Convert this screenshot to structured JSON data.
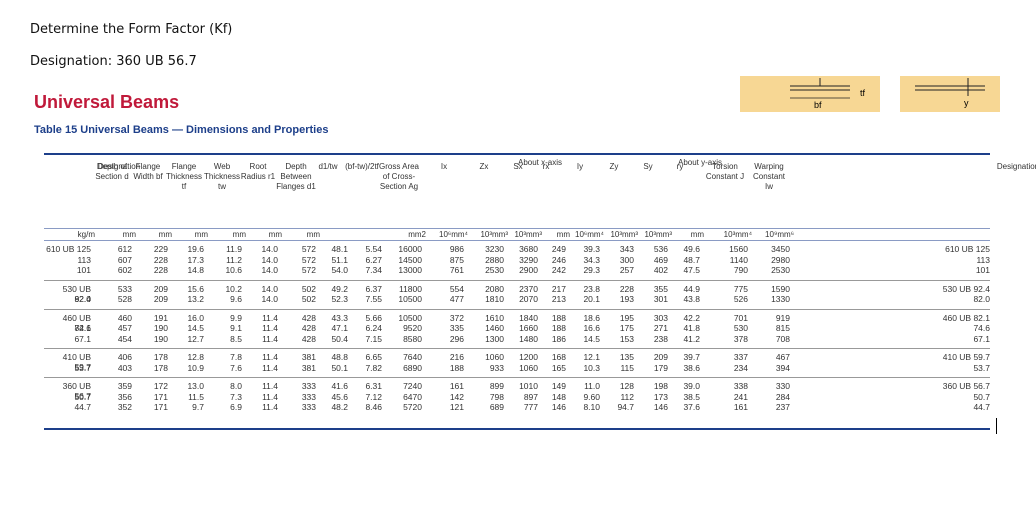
{
  "question": {
    "line1": "Determine the Form Factor (Kf)",
    "line2": "Designation: 360 UB 56.7"
  },
  "section_title": "Universal Beams",
  "table_title": "Table 15 Universal Beams — Dimensions and Properties",
  "diagram_labels": {
    "bf": "bf",
    "tf": "tf",
    "y": "y"
  },
  "headers": [
    "Designation",
    "Depth of Section d",
    "Flange Width bf",
    "Flange Thickness tf",
    "Web Thickness tw",
    "Root Radius r1",
    "Depth Between Flanges d1",
    "d1/tw",
    "(bf-tw)/2tf",
    "Gross Area of Cross-Section Ag",
    "Ix",
    "Zx",
    "Sx",
    "rx",
    "Iy",
    "Zy",
    "Sy",
    "ry",
    "Torsion Constant J",
    "Warping Constant Iw",
    "Designation"
  ],
  "header_group_x": "About x-axis",
  "header_group_y": "About y-axis",
  "units": [
    "kg/m",
    "mm",
    "mm",
    "mm",
    "mm",
    "mm",
    "mm",
    "",
    "",
    "mm2",
    "10⁶mm⁴",
    "10³mm³",
    "10³mm³",
    "mm",
    "10⁶mm⁴",
    "10³mm³",
    "10³mm³",
    "mm",
    "10³mm⁴",
    "10⁹mm⁶",
    ""
  ],
  "rows": [
    [
      "610 UB 125",
      "612",
      "229",
      "19.6",
      "11.9",
      "14.0",
      "572",
      "48.1",
      "5.54",
      "16000",
      "986",
      "3230",
      "3680",
      "249",
      "39.3",
      "343",
      "536",
      "49.6",
      "1560",
      "3450",
      "610 UB 125"
    ],
    [
      "113",
      "607",
      "228",
      "17.3",
      "11.2",
      "14.0",
      "572",
      "51.1",
      "6.27",
      "14500",
      "875",
      "2880",
      "3290",
      "246",
      "34.3",
      "300",
      "469",
      "48.7",
      "1140",
      "2980",
      "113"
    ],
    [
      "101",
      "602",
      "228",
      "14.8",
      "10.6",
      "14.0",
      "572",
      "54.0",
      "7.34",
      "13000",
      "761",
      "2530",
      "2900",
      "242",
      "29.3",
      "257",
      "402",
      "47.5",
      "790",
      "2530",
      "101"
    ],
    [
      "530 UB 92.4",
      "533",
      "209",
      "15.6",
      "10.2",
      "14.0",
      "502",
      "49.2",
      "6.37",
      "11800",
      "554",
      "2080",
      "2370",
      "217",
      "23.8",
      "228",
      "355",
      "44.9",
      "775",
      "1590",
      "530 UB 92.4"
    ],
    [
      "82.0",
      "528",
      "209",
      "13.2",
      "9.6",
      "14.0",
      "502",
      "52.3",
      "7.55",
      "10500",
      "477",
      "1810",
      "2070",
      "213",
      "20.1",
      "193",
      "301",
      "43.8",
      "526",
      "1330",
      "82.0"
    ],
    [
      "460 UB 82.1",
      "460",
      "191",
      "16.0",
      "9.9",
      "11.4",
      "428",
      "43.3",
      "5.66",
      "10500",
      "372",
      "1610",
      "1840",
      "188",
      "18.6",
      "195",
      "303",
      "42.2",
      "701",
      "919",
      "460 UB 82.1"
    ],
    [
      "74.6",
      "457",
      "190",
      "14.5",
      "9.1",
      "11.4",
      "428",
      "47.1",
      "6.24",
      "9520",
      "335",
      "1460",
      "1660",
      "188",
      "16.6",
      "175",
      "271",
      "41.8",
      "530",
      "815",
      "74.6"
    ],
    [
      "67.1",
      "454",
      "190",
      "12.7",
      "8.5",
      "11.4",
      "428",
      "50.4",
      "7.15",
      "8580",
      "296",
      "1300",
      "1480",
      "186",
      "14.5",
      "153",
      "238",
      "41.2",
      "378",
      "708",
      "67.1"
    ],
    [
      "410 UB 59.7",
      "406",
      "178",
      "12.8",
      "7.8",
      "11.4",
      "381",
      "48.8",
      "6.65",
      "7640",
      "216",
      "1060",
      "1200",
      "168",
      "12.1",
      "135",
      "209",
      "39.7",
      "337",
      "467",
      "410 UB 59.7"
    ],
    [
      "53.7",
      "403",
      "178",
      "10.9",
      "7.6",
      "11.4",
      "381",
      "50.1",
      "7.82",
      "6890",
      "188",
      "933",
      "1060",
      "165",
      "10.3",
      "115",
      "179",
      "38.6",
      "234",
      "394",
      "53.7"
    ],
    [
      "360 UB 56.7",
      "359",
      "172",
      "13.0",
      "8.0",
      "11.4",
      "333",
      "41.6",
      "6.31",
      "7240",
      "161",
      "899",
      "1010",
      "149",
      "11.0",
      "128",
      "198",
      "39.0",
      "338",
      "330",
      "360 UB 56.7"
    ],
    [
      "50.7",
      "356",
      "171",
      "11.5",
      "7.3",
      "11.4",
      "333",
      "45.6",
      "7.12",
      "6470",
      "142",
      "798",
      "897",
      "148",
      "9.60",
      "112",
      "173",
      "38.5",
      "241",
      "284",
      "50.7"
    ],
    [
      "44.7",
      "352",
      "171",
      "9.7",
      "6.9",
      "11.4",
      "333",
      "48.2",
      "8.46",
      "5720",
      "121",
      "689",
      "777",
      "146",
      "8.10",
      "94.7",
      "146",
      "37.6",
      "161",
      "237",
      "44.7"
    ]
  ]
}
